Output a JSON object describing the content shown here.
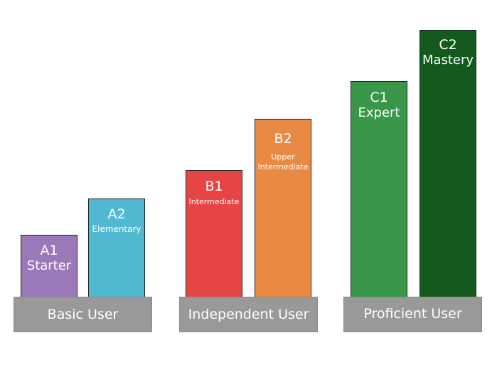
{
  "groups": {
    "basic": {
      "label": "Basic User",
      "levels": [
        {
          "code": "A1",
          "name": "Starter",
          "color": "#9b79b9"
        },
        {
          "code": "A2",
          "name": "Elementary",
          "color": "#50b8d1"
        }
      ]
    },
    "independent": {
      "label": "Independent User",
      "levels": [
        {
          "code": "B1",
          "name": "Intermediate",
          "color": "#e64545"
        },
        {
          "code": "B2",
          "name": "Upper\nIntermediate",
          "color": "#e98a44"
        }
      ]
    },
    "proficient": {
      "label": "Proficient User",
      "levels": [
        {
          "code": "C1",
          "name": "Expert",
          "color": "#3a9649"
        },
        {
          "code": "C2",
          "name": "Mastery",
          "color": "#145a1f"
        }
      ]
    }
  }
}
